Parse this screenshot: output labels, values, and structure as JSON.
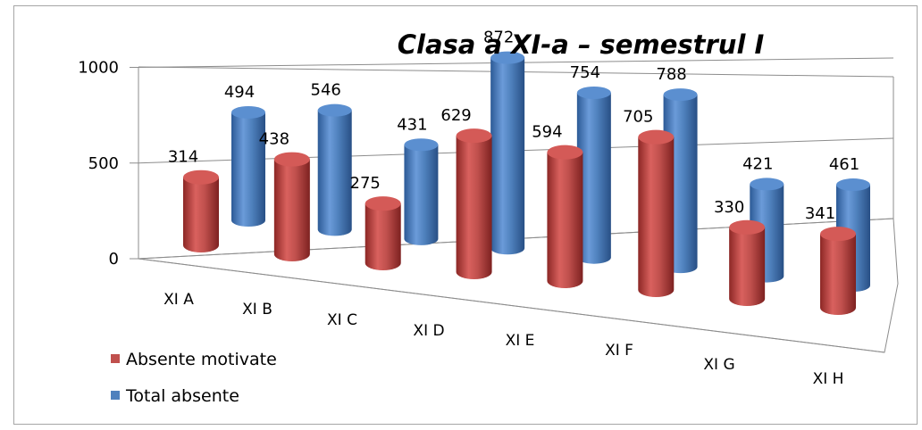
{
  "chart_data": {
    "type": "bar",
    "title": "Clasa a XI-a – semestrul I",
    "categories": [
      "XI A",
      "XI B",
      "XI C",
      "XI D",
      "XI E",
      "XI F",
      "XI G",
      "XI H"
    ],
    "series": [
      {
        "name": "Absente motivate",
        "values": [
          314,
          438,
          275,
          629,
          594,
          705,
          330,
          341
        ],
        "color": "#c0504d"
      },
      {
        "name": "Total absente",
        "values": [
          494,
          546,
          431,
          872,
          754,
          788,
          421,
          461
        ],
        "color": "#4f81bd"
      }
    ],
    "yticks": [
      0,
      500,
      1000
    ],
    "ylim": [
      0,
      1000
    ],
    "legend_position": "bottom-left",
    "style": "3d-cylinder"
  }
}
